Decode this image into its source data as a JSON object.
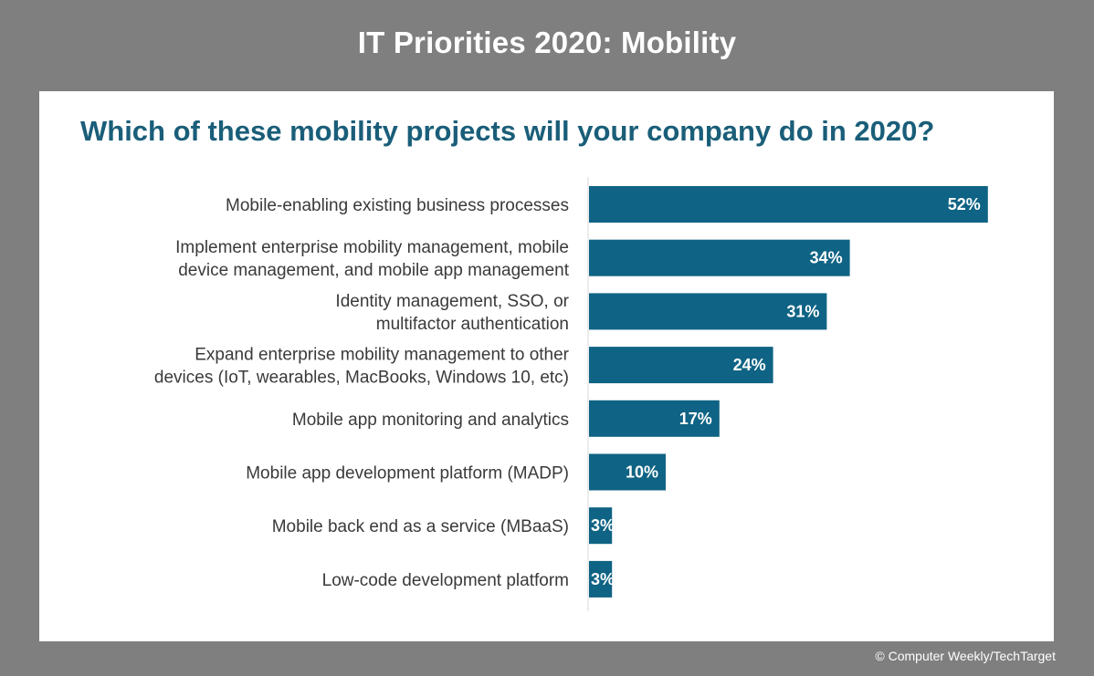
{
  "banner": {
    "title": "IT Priorities 2020: Mobility"
  },
  "credit": "© Computer Weekly/TechTarget",
  "colors": {
    "bar": "#0f6384",
    "axis": "#d9d9d9",
    "title": "#1a5e79",
    "background": "#7f7f7f"
  },
  "chart_data": {
    "type": "bar",
    "orientation": "horizontal",
    "title": "Which of these mobility projects will your company do in 2020?",
    "categories": [
      [
        "Mobile-enabling existing business processes"
      ],
      [
        "Implement enterprise mobility management, mobile",
        "device management, and mobile app management"
      ],
      [
        "Identity management, SSO, or",
        "multifactor authentication"
      ],
      [
        "Expand enterprise mobility management to other",
        "devices (IoT, wearables, MacBooks, Windows 10, etc)"
      ],
      [
        "Mobile app monitoring and analytics"
      ],
      [
        "Mobile app development platform (MADP)"
      ],
      [
        "Mobile back end as a service (MBaaS)"
      ],
      [
        "Low-code development platform"
      ]
    ],
    "values": [
      52,
      34,
      31,
      24,
      17,
      10,
      3,
      3
    ],
    "value_labels": [
      "52%",
      "34%",
      "31%",
      "24%",
      "17%",
      "10%",
      "3%",
      "3%"
    ],
    "xlim": [
      0,
      60
    ],
    "grid": false,
    "legend": "none"
  }
}
